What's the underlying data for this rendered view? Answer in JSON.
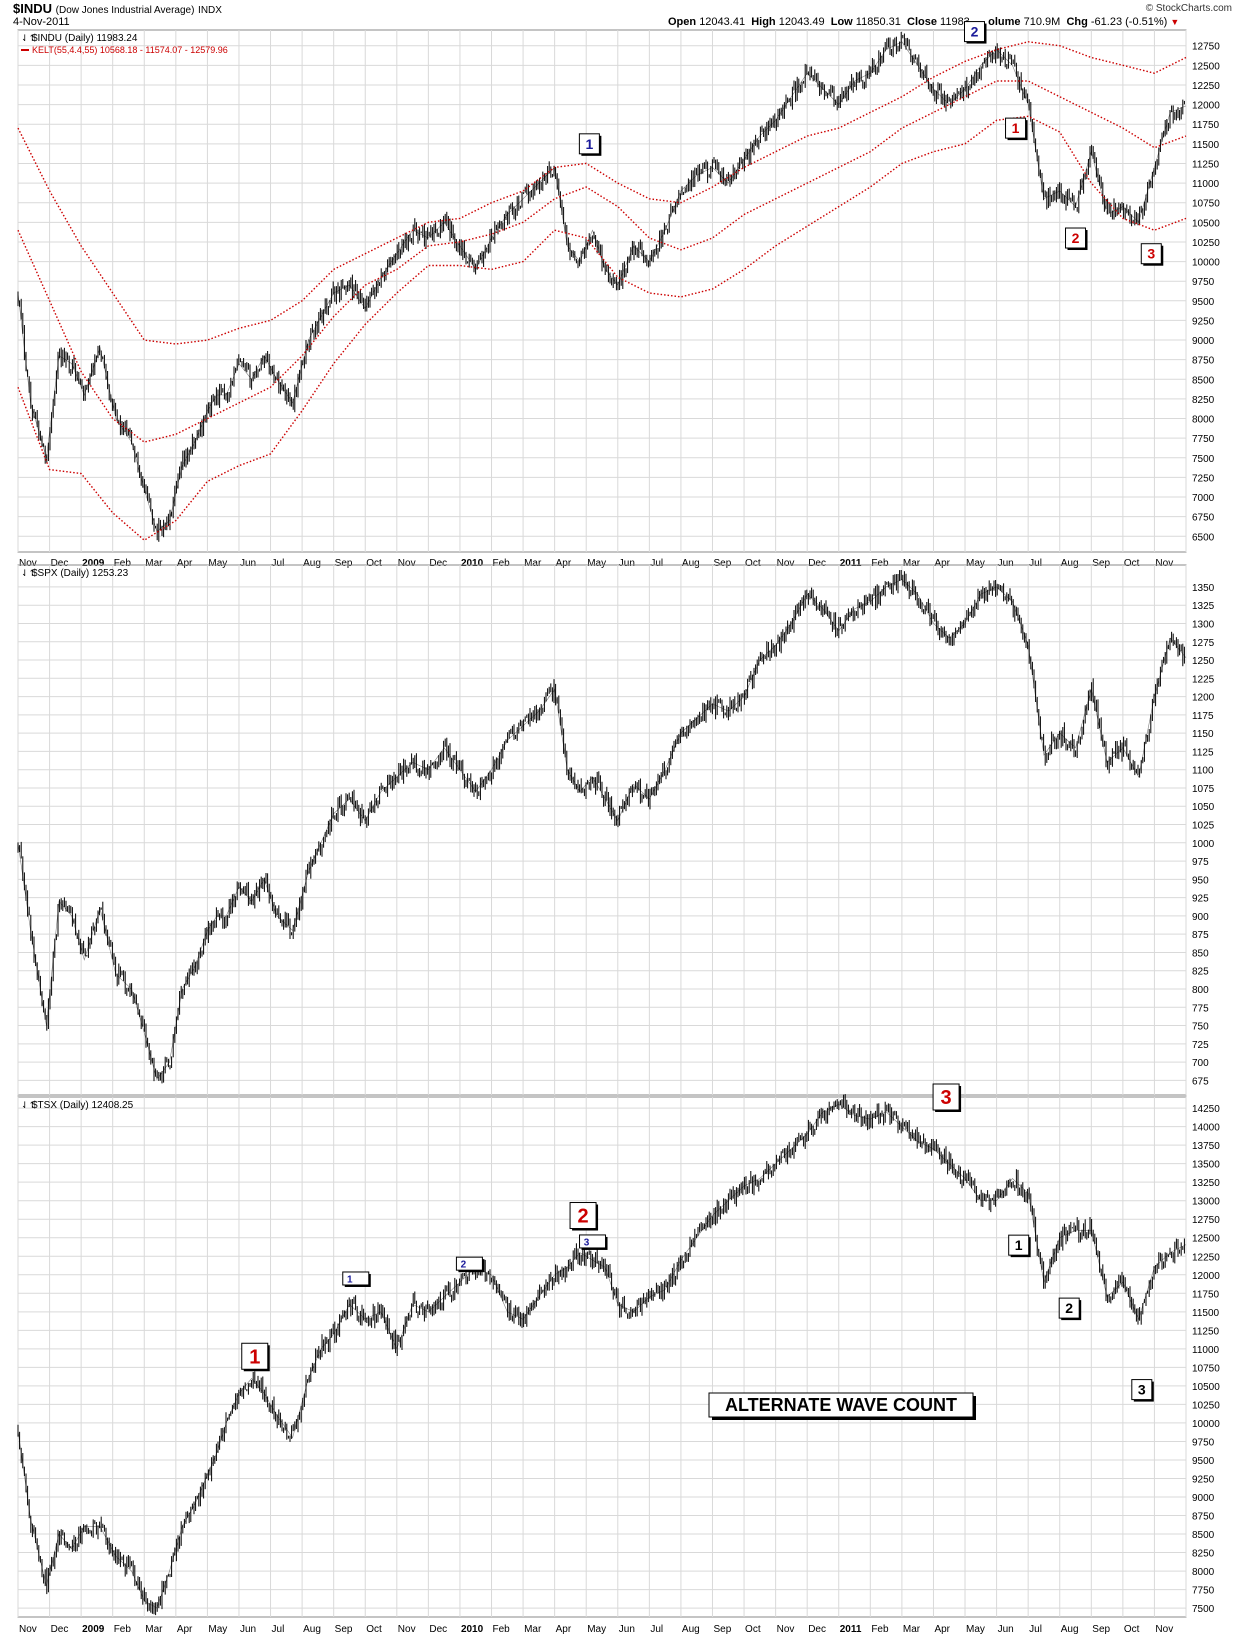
{
  "header": {
    "symbol": "$INDU",
    "symbol_desc": "(Dow Jones Industrial Average)",
    "exchange": "INDX",
    "date": "4-Nov-2011",
    "watermark": "© StockCharts.com",
    "open_label": "Open",
    "open": "12043.41",
    "high_label": "High",
    "high": "12043.49",
    "low_label": "Low",
    "low": "11850.31",
    "close_label": "Close",
    "close": "11983.",
    "volume_label": "olume",
    "volume": "710.9M",
    "chg_label": "Chg",
    "chg": "-61.23 (-0.51%)",
    "chg_arrow": "▼"
  },
  "colors": {
    "price": "#000000",
    "keltner": "#cc0000",
    "label_blue": "#1a1a9a",
    "label_red": "#cc0000",
    "grid": "#d9d9d9"
  },
  "chart_data": [
    {
      "type": "line",
      "name": "$INDU (Daily) 11983.24",
      "legend": [
        "$INDU (Daily) 11983.24",
        "KELT(55,4.4,55) 10568.18 - 11574.07 - 12579.96"
      ],
      "ylim": [
        6300,
        12950
      ],
      "yticks": [
        6500,
        6750,
        7000,
        7250,
        7500,
        7750,
        8000,
        8250,
        8500,
        8750,
        9000,
        9250,
        9500,
        9750,
        10000,
        10250,
        10500,
        10750,
        11000,
        11250,
        11500,
        11750,
        12000,
        12250,
        12500,
        12750
      ],
      "series": [
        {
          "name": "$INDU",
          "x": [
            0,
            0.4,
            0.9,
            1.3,
            1.7,
            2.1,
            2.6,
            3.1,
            3.6,
            4.0,
            4.4,
            4.8,
            5.2,
            5.6,
            6.0,
            6.3,
            6.6,
            7.0,
            7.4,
            7.8,
            8.2,
            8.7,
            9.2,
            9.6,
            10.0,
            10.5,
            11.0,
            11.5,
            12.0,
            12.5,
            13.0,
            13.5,
            14.0,
            14.5,
            15.0,
            15.5,
            16.0,
            16.5,
            17.0,
            17.4,
            17.8,
            18.2,
            18.6,
            19.0,
            19.5,
            20.0,
            20.5,
            21.0,
            21.5,
            22.0,
            22.5,
            23.0,
            23.5,
            24.0,
            24.5,
            25.0,
            25.5,
            26.0,
            26.5,
            27.0,
            27.5,
            28.0,
            28.5,
            29.0,
            29.5,
            30.0,
            30.5,
            31.0,
            31.5,
            32.0,
            32.5,
            33.0,
            33.5,
            34.0,
            34.5,
            35.0,
            35.5,
            36.0,
            36.5,
            37.0
          ],
          "values": [
            9600,
            8200,
            7500,
            8800,
            8700,
            8300,
            8900,
            8000,
            7700,
            7100,
            6560,
            6700,
            7400,
            7700,
            8100,
            8300,
            8300,
            8700,
            8500,
            8800,
            8500,
            8200,
            9000,
            9300,
            9600,
            9700,
            9400,
            9800,
            10100,
            10400,
            10300,
            10500,
            10200,
            9900,
            10300,
            10600,
            10800,
            11000,
            11200,
            10200,
            10000,
            10400,
            9900,
            9700,
            10200,
            10000,
            10400,
            10900,
            11100,
            11200,
            11000,
            11300,
            11600,
            11800,
            12100,
            12400,
            12200,
            12000,
            12300,
            12400,
            12700,
            12800,
            12500,
            12200,
            12000,
            12200,
            12500,
            12700,
            12500,
            12000,
            10800,
            10900,
            10700,
            11400,
            10600,
            10700,
            10500,
            11200,
            11900,
            11983
          ]
        },
        {
          "name": "KELT upper",
          "x": [
            0,
            1,
            2,
            3,
            4,
            5,
            6,
            7,
            8,
            9,
            10,
            11,
            12,
            13,
            14,
            15,
            16,
            17,
            18,
            19,
            20,
            21,
            22,
            23,
            24,
            25,
            26,
            27,
            28,
            29,
            30,
            31,
            32,
            33,
            34,
            35,
            36,
            37
          ],
          "values": [
            11700,
            10900,
            10200,
            9600,
            9000,
            8950,
            9000,
            9150,
            9250,
            9500,
            9900,
            10100,
            10300,
            10500,
            10550,
            10750,
            10900,
            11200,
            11250,
            11000,
            10800,
            10750,
            10950,
            11200,
            11400,
            11600,
            11700,
            11900,
            12100,
            12350,
            12550,
            12700,
            12800,
            12750,
            12600,
            12500,
            12400,
            12600
          ]
        },
        {
          "name": "KELT middle",
          "x": [
            0,
            1,
            2,
            3,
            4,
            5,
            6,
            7,
            8,
            9,
            10,
            11,
            12,
            13,
            14,
            15,
            16,
            17,
            18,
            19,
            20,
            21,
            22,
            23,
            24,
            25,
            26,
            27,
            28,
            29,
            30,
            31,
            32,
            33,
            34,
            35,
            36,
            37
          ],
          "values": [
            10400,
            9500,
            8600,
            8000,
            7700,
            7800,
            8000,
            8200,
            8400,
            8800,
            9300,
            9700,
            9900,
            10200,
            10250,
            10350,
            10500,
            10800,
            10950,
            10700,
            10300,
            10150,
            10300,
            10600,
            10800,
            11000,
            11200,
            11400,
            11700,
            11900,
            12100,
            12300,
            12300,
            12100,
            11900,
            11700,
            11450,
            11600
          ]
        },
        {
          "name": "KELT lower",
          "x": [
            0,
            1,
            2,
            3,
            4,
            5,
            6,
            7,
            8,
            9,
            10,
            11,
            12,
            13,
            14,
            15,
            16,
            17,
            18,
            19,
            20,
            21,
            22,
            23,
            24,
            25,
            26,
            27,
            28,
            29,
            30,
            31,
            32,
            33,
            34,
            35,
            36,
            37
          ],
          "values": [
            8400,
            7350,
            7300,
            6800,
            6450,
            6700,
            7200,
            7400,
            7550,
            8100,
            8700,
            9200,
            9600,
            9950,
            9950,
            9900,
            10000,
            10400,
            10300,
            9800,
            9600,
            9550,
            9650,
            9900,
            10200,
            10450,
            10700,
            10950,
            11250,
            11400,
            11500,
            11800,
            11850,
            11650,
            11000,
            10550,
            10400,
            10550
          ]
        }
      ],
      "annotations": [
        {
          "label": "1",
          "x": 18.1,
          "y": 11500,
          "color": "blue"
        },
        {
          "label": "2",
          "x": 30.3,
          "y": 12930,
          "color": "blue"
        },
        {
          "label": "1",
          "x": 31.6,
          "y": 11700,
          "color": "red"
        },
        {
          "label": "2",
          "x": 33.5,
          "y": 10300,
          "color": "red"
        },
        {
          "label": "3",
          "x": 35.9,
          "y": 10100,
          "color": "red"
        }
      ]
    },
    {
      "type": "line",
      "name": "$SPX (Daily) 1253.23",
      "legend": [
        "$SPX (Daily) 1253.23"
      ],
      "ylim": [
        655,
        1380
      ],
      "yticks": [
        675,
        700,
        725,
        750,
        775,
        800,
        825,
        850,
        875,
        900,
        925,
        950,
        975,
        1000,
        1025,
        1050,
        1075,
        1100,
        1125,
        1150,
        1175,
        1200,
        1225,
        1250,
        1275,
        1300,
        1325,
        1350
      ],
      "series": [
        {
          "name": "$SPX",
          "x": [
            0,
            0.4,
            0.9,
            1.3,
            1.7,
            2.1,
            2.6,
            3.1,
            3.6,
            4.0,
            4.4,
            4.8,
            5.2,
            5.6,
            6.0,
            6.3,
            6.6,
            7.0,
            7.4,
            7.8,
            8.2,
            8.7,
            9.2,
            9.6,
            10.0,
            10.5,
            11.0,
            11.5,
            12.0,
            12.5,
            13.0,
            13.5,
            14.0,
            14.5,
            15.0,
            15.5,
            16.0,
            16.5,
            17.0,
            17.4,
            17.8,
            18.2,
            18.6,
            19.0,
            19.5,
            20.0,
            20.5,
            21.0,
            21.5,
            22.0,
            22.5,
            23.0,
            23.5,
            24.0,
            24.5,
            25.0,
            25.5,
            26.0,
            26.5,
            27.0,
            27.5,
            28.0,
            28.5,
            29.0,
            29.5,
            30.0,
            30.5,
            31.0,
            31.5,
            32.0,
            32.5,
            33.0,
            33.5,
            34.0,
            34.5,
            35.0,
            35.5,
            36.0,
            36.5,
            37.0
          ],
          "values": [
            1000,
            880,
            750,
            920,
            900,
            840,
            910,
            820,
            800,
            740,
            676,
            700,
            800,
            830,
            880,
            900,
            900,
            940,
            920,
            950,
            900,
            880,
            960,
            1000,
            1040,
            1060,
            1030,
            1070,
            1090,
            1110,
            1100,
            1130,
            1100,
            1070,
            1100,
            1140,
            1160,
            1180,
            1210,
            1100,
            1070,
            1090,
            1060,
            1030,
            1080,
            1060,
            1100,
            1150,
            1170,
            1190,
            1180,
            1200,
            1250,
            1270,
            1300,
            1340,
            1320,
            1290,
            1320,
            1330,
            1350,
            1360,
            1340,
            1300,
            1280,
            1300,
            1340,
            1350,
            1330,
            1270,
            1120,
            1150,
            1130,
            1210,
            1110,
            1130,
            1090,
            1200,
            1280,
            1253
          ]
        }
      ]
    },
    {
      "type": "line",
      "name": "$TSX (Daily) 12408.25",
      "legend": [
        "$TSX (Daily) 12408.25"
      ],
      "ylim": [
        7380,
        14400
      ],
      "yticks": [
        7500,
        7750,
        8000,
        8250,
        8500,
        8750,
        9000,
        9250,
        9500,
        9750,
        10000,
        10250,
        10500,
        10750,
        11000,
        11250,
        11500,
        11750,
        12000,
        12250,
        12500,
        12750,
        13000,
        13250,
        13500,
        13750,
        14000,
        14250
      ],
      "series": [
        {
          "name": "$TSX",
          "x": [
            0,
            0.4,
            0.9,
            1.3,
            1.7,
            2.1,
            2.6,
            3.1,
            3.6,
            4.0,
            4.4,
            4.8,
            5.2,
            5.6,
            6.0,
            6.3,
            6.6,
            7.0,
            7.4,
            7.8,
            8.2,
            8.7,
            9.2,
            9.6,
            10.0,
            10.5,
            11.0,
            11.5,
            12.0,
            12.5,
            13.0,
            13.5,
            14.0,
            14.5,
            15.0,
            15.5,
            16.0,
            16.5,
            17.0,
            17.4,
            17.8,
            18.2,
            18.6,
            19.0,
            19.5,
            20.0,
            20.5,
            21.0,
            21.5,
            22.0,
            22.5,
            23.0,
            23.5,
            24.0,
            24.5,
            25.0,
            25.5,
            26.0,
            26.5,
            27.0,
            27.5,
            28.0,
            28.5,
            29.0,
            29.5,
            30.0,
            30.5,
            31.0,
            31.5,
            32.0,
            32.5,
            33.0,
            33.5,
            34.0,
            34.5,
            35.0,
            35.5,
            36.0,
            36.5,
            37.0
          ],
          "values": [
            9900,
            8700,
            7800,
            8500,
            8300,
            8600,
            8600,
            8200,
            8000,
            7600,
            7500,
            8000,
            8600,
            8900,
            9300,
            9600,
            10000,
            10400,
            10600,
            10400,
            10100,
            9800,
            10600,
            11000,
            11200,
            11600,
            11400,
            11500,
            11000,
            11600,
            11500,
            11700,
            11900,
            12100,
            12000,
            11500,
            11400,
            11700,
            12000,
            12100,
            12300,
            12200,
            12100,
            11600,
            11500,
            11700,
            11800,
            12200,
            12500,
            12800,
            13000,
            13200,
            13300,
            13500,
            13700,
            13900,
            14200,
            14300,
            14150,
            14100,
            14200,
            14000,
            13800,
            13700,
            13500,
            13300,
            13000,
            13000,
            13300,
            13100,
            11900,
            12500,
            12600,
            12600,
            11700,
            11900,
            11400,
            12100,
            12300,
            12408
          ]
        }
      ],
      "annotations": [
        {
          "label": "1",
          "x": 7.5,
          "y": 10900,
          "color": "red",
          "size": "large"
        },
        {
          "label": "1",
          "x": 10.7,
          "y": 11950,
          "color": "blue",
          "size": "small"
        },
        {
          "label": "2",
          "x": 14.3,
          "y": 12150,
          "color": "blue",
          "size": "small"
        },
        {
          "label": "2",
          "x": 17.9,
          "y": 12800,
          "color": "red",
          "size": "large"
        },
        {
          "label": "3",
          "x": 18.2,
          "y": 12450,
          "color": "blue",
          "size": "small"
        },
        {
          "label": "3",
          "x": 29.4,
          "y": 14400,
          "color": "red",
          "size": "large"
        },
        {
          "label": "1",
          "x": 31.7,
          "y": 12400,
          "color": "black"
        },
        {
          "label": "2",
          "x": 33.3,
          "y": 11550,
          "color": "black"
        },
        {
          "label": "3",
          "x": 35.6,
          "y": 10450,
          "color": "black"
        }
      ],
      "callout": "ALTERNATE WAVE COUNT"
    }
  ],
  "x_axis": {
    "months": [
      "Nov",
      "Dec",
      "2009",
      "Feb",
      "Mar",
      "Apr",
      "May",
      "Jun",
      "Jul",
      "Aug",
      "Sep",
      "Oct",
      "Nov",
      "Dec",
      "2010",
      "Feb",
      "Mar",
      "Apr",
      "May",
      "Jun",
      "Jul",
      "Aug",
      "Sep",
      "Oct",
      "Nov",
      "Dec",
      "2011",
      "Feb",
      "Mar",
      "Apr",
      "May",
      "Jun",
      "Jul",
      "Aug",
      "Sep",
      "Oct",
      "Nov"
    ],
    "bold": [
      "2009",
      "2010",
      "2011"
    ]
  }
}
